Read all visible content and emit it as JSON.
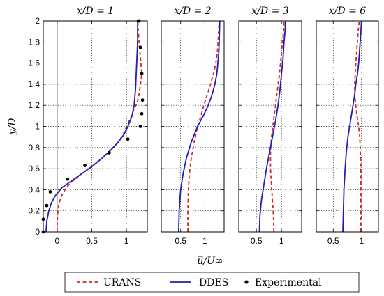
{
  "chart_data": {
    "type": "line",
    "ylabel": "y/D",
    "xlabel": "u̅/U∞",
    "ylim": [
      0,
      2
    ],
    "yticks": [
      0,
      0.2,
      0.4,
      0.6,
      0.8,
      1,
      1.2,
      1.4,
      1.6,
      1.8,
      2
    ],
    "ytick_labels": [
      "0",
      "0.2",
      "0.4",
      "0.6",
      "0.8",
      "1",
      "1.2",
      "1.4",
      "1.6",
      "1.8",
      "2"
    ],
    "grid": true,
    "legend_position": "bottom-center",
    "legend": [
      {
        "label": "URANS",
        "style": "dashed",
        "color": "#d62728"
      },
      {
        "label": "DDES",
        "style": "solid",
        "color": "#1f1fb4"
      },
      {
        "label": "Experimental",
        "style": "marker",
        "color": "#000000"
      }
    ],
    "panels": [
      {
        "title": "x/D = 1",
        "xlim": [
          -0.2,
          1.3
        ],
        "xticks": [
          0,
          0.5,
          1
        ],
        "xtick_labels": [
          "0",
          "0.5",
          "1"
        ],
        "series": [
          {
            "name": "URANS",
            "x": [
              0.0,
              0.0,
              0.01,
              0.03,
              0.07,
              0.13,
              0.22,
              0.35,
              0.5,
              0.65,
              0.78,
              0.88,
              0.95,
              1.0,
              1.06,
              1.1,
              1.15,
              1.18,
              1.2,
              1.22,
              1.2,
              1.18,
              1.16
            ],
            "y": [
              0,
              0.1,
              0.2,
              0.28,
              0.35,
              0.42,
              0.48,
              0.55,
              0.62,
              0.7,
              0.78,
              0.85,
              0.92,
              1.0,
              1.08,
              1.15,
              1.22,
              1.3,
              1.4,
              1.5,
              1.65,
              1.8,
              2.0
            ]
          },
          {
            "name": "DDES",
            "x": [
              -0.16,
              -0.15,
              -0.12,
              -0.08,
              -0.02,
              0.07,
              0.2,
              0.35,
              0.5,
              0.65,
              0.78,
              0.88,
              0.96,
              1.02,
              1.08,
              1.11,
              1.13,
              1.14,
              1.15,
              1.16,
              1.16
            ],
            "y": [
              0,
              0.1,
              0.2,
              0.28,
              0.35,
              0.42,
              0.48,
              0.55,
              0.62,
              0.7,
              0.78,
              0.85,
              0.92,
              1.0,
              1.1,
              1.2,
              1.35,
              1.5,
              1.65,
              1.8,
              2.0
            ]
          },
          {
            "name": "Experimental",
            "x": [
              -0.2,
              -0.2,
              -0.15,
              -0.1,
              0.15,
              0.4,
              0.75,
              1.02,
              1.2,
              1.22,
              1.23,
              1.22,
              1.2,
              1.18,
              1.17
            ],
            "y": [
              0,
              0.12,
              0.25,
              0.38,
              0.5,
              0.63,
              0.75,
              0.88,
              1.0,
              1.12,
              1.25,
              1.5,
              1.75,
              2.0,
              2.0
            ]
          }
        ]
      },
      {
        "title": "x/D = 2",
        "xlim": [
          0.1,
          1.4
        ],
        "xticks": [
          0.5,
          1
        ],
        "xtick_labels": [
          "0.5",
          "1"
        ],
        "series": [
          {
            "name": "URANS",
            "x": [
              0.65,
              0.65,
              0.66,
              0.68,
              0.72,
              0.78,
              0.85,
              0.92,
              0.98,
              1.05,
              1.12,
              1.18,
              1.23,
              1.26,
              1.28,
              1.3
            ],
            "y": [
              0,
              0.2,
              0.4,
              0.55,
              0.7,
              0.85,
              1.0,
              1.1,
              1.2,
              1.3,
              1.4,
              1.5,
              1.6,
              1.7,
              1.85,
              2.0
            ]
          },
          {
            "name": "DDES",
            "x": [
              0.46,
              0.47,
              0.5,
              0.55,
              0.62,
              0.72,
              0.85,
              0.97,
              1.07,
              1.15,
              1.21,
              1.25,
              1.27,
              1.29,
              1.3,
              1.31
            ],
            "y": [
              0,
              0.2,
              0.4,
              0.55,
              0.7,
              0.85,
              1.0,
              1.1,
              1.2,
              1.3,
              1.4,
              1.5,
              1.6,
              1.7,
              1.85,
              2.0
            ]
          }
        ]
      },
      {
        "title": "x/D = 3",
        "xlim": [
          0.15,
          1.4
        ],
        "xticks": [
          0.5,
          1
        ],
        "xtick_labels": [
          "0.5",
          "1"
        ],
        "series": [
          {
            "name": "URANS",
            "x": [
              0.85,
              0.84,
              0.82,
              0.8,
              0.78,
              0.78,
              0.8,
              0.84,
              0.88,
              0.92,
              0.96,
              0.99,
              1.02,
              1.04,
              1.05
            ],
            "y": [
              0,
              0.15,
              0.3,
              0.45,
              0.6,
              0.75,
              0.9,
              1.05,
              1.2,
              1.35,
              1.5,
              1.65,
              1.8,
              1.9,
              2.0
            ]
          },
          {
            "name": "DDES",
            "x": [
              0.56,
              0.57,
              0.6,
              0.65,
              0.7,
              0.76,
              0.82,
              0.88,
              0.93,
              0.97,
              1.0,
              1.03,
              1.05,
              1.07,
              1.08
            ],
            "y": [
              0,
              0.15,
              0.3,
              0.45,
              0.6,
              0.75,
              0.9,
              1.05,
              1.2,
              1.35,
              1.5,
              1.65,
              1.8,
              1.9,
              2.0
            ]
          }
        ]
      },
      {
        "title": "x/D = 6",
        "xlim": [
          0.2,
          1.3
        ],
        "xticks": [
          0.5,
          1
        ],
        "xtick_labels": [
          "0.5",
          "1"
        ],
        "series": [
          {
            "name": "URANS",
            "x": [
              0.99,
              0.99,
              0.99,
              0.99,
              0.98,
              0.97,
              0.95,
              0.92,
              0.9,
              0.88,
              0.88,
              0.89,
              0.9,
              0.92,
              0.94,
              0.96
            ],
            "y": [
              0,
              0.2,
              0.4,
              0.6,
              0.75,
              0.9,
              1.0,
              1.1,
              1.2,
              1.3,
              1.4,
              1.5,
              1.6,
              1.75,
              1.9,
              2.0
            ]
          },
          {
            "name": "DDES",
            "x": [
              0.67,
              0.68,
              0.69,
              0.71,
              0.73,
              0.76,
              0.79,
              0.82,
              0.85,
              0.88,
              0.9,
              0.93,
              0.95,
              0.97,
              0.99,
              1.0
            ],
            "y": [
              0,
              0.2,
              0.4,
              0.6,
              0.75,
              0.9,
              1.0,
              1.1,
              1.2,
              1.3,
              1.4,
              1.5,
              1.6,
              1.75,
              1.9,
              2.0
            ]
          }
        ]
      }
    ]
  }
}
